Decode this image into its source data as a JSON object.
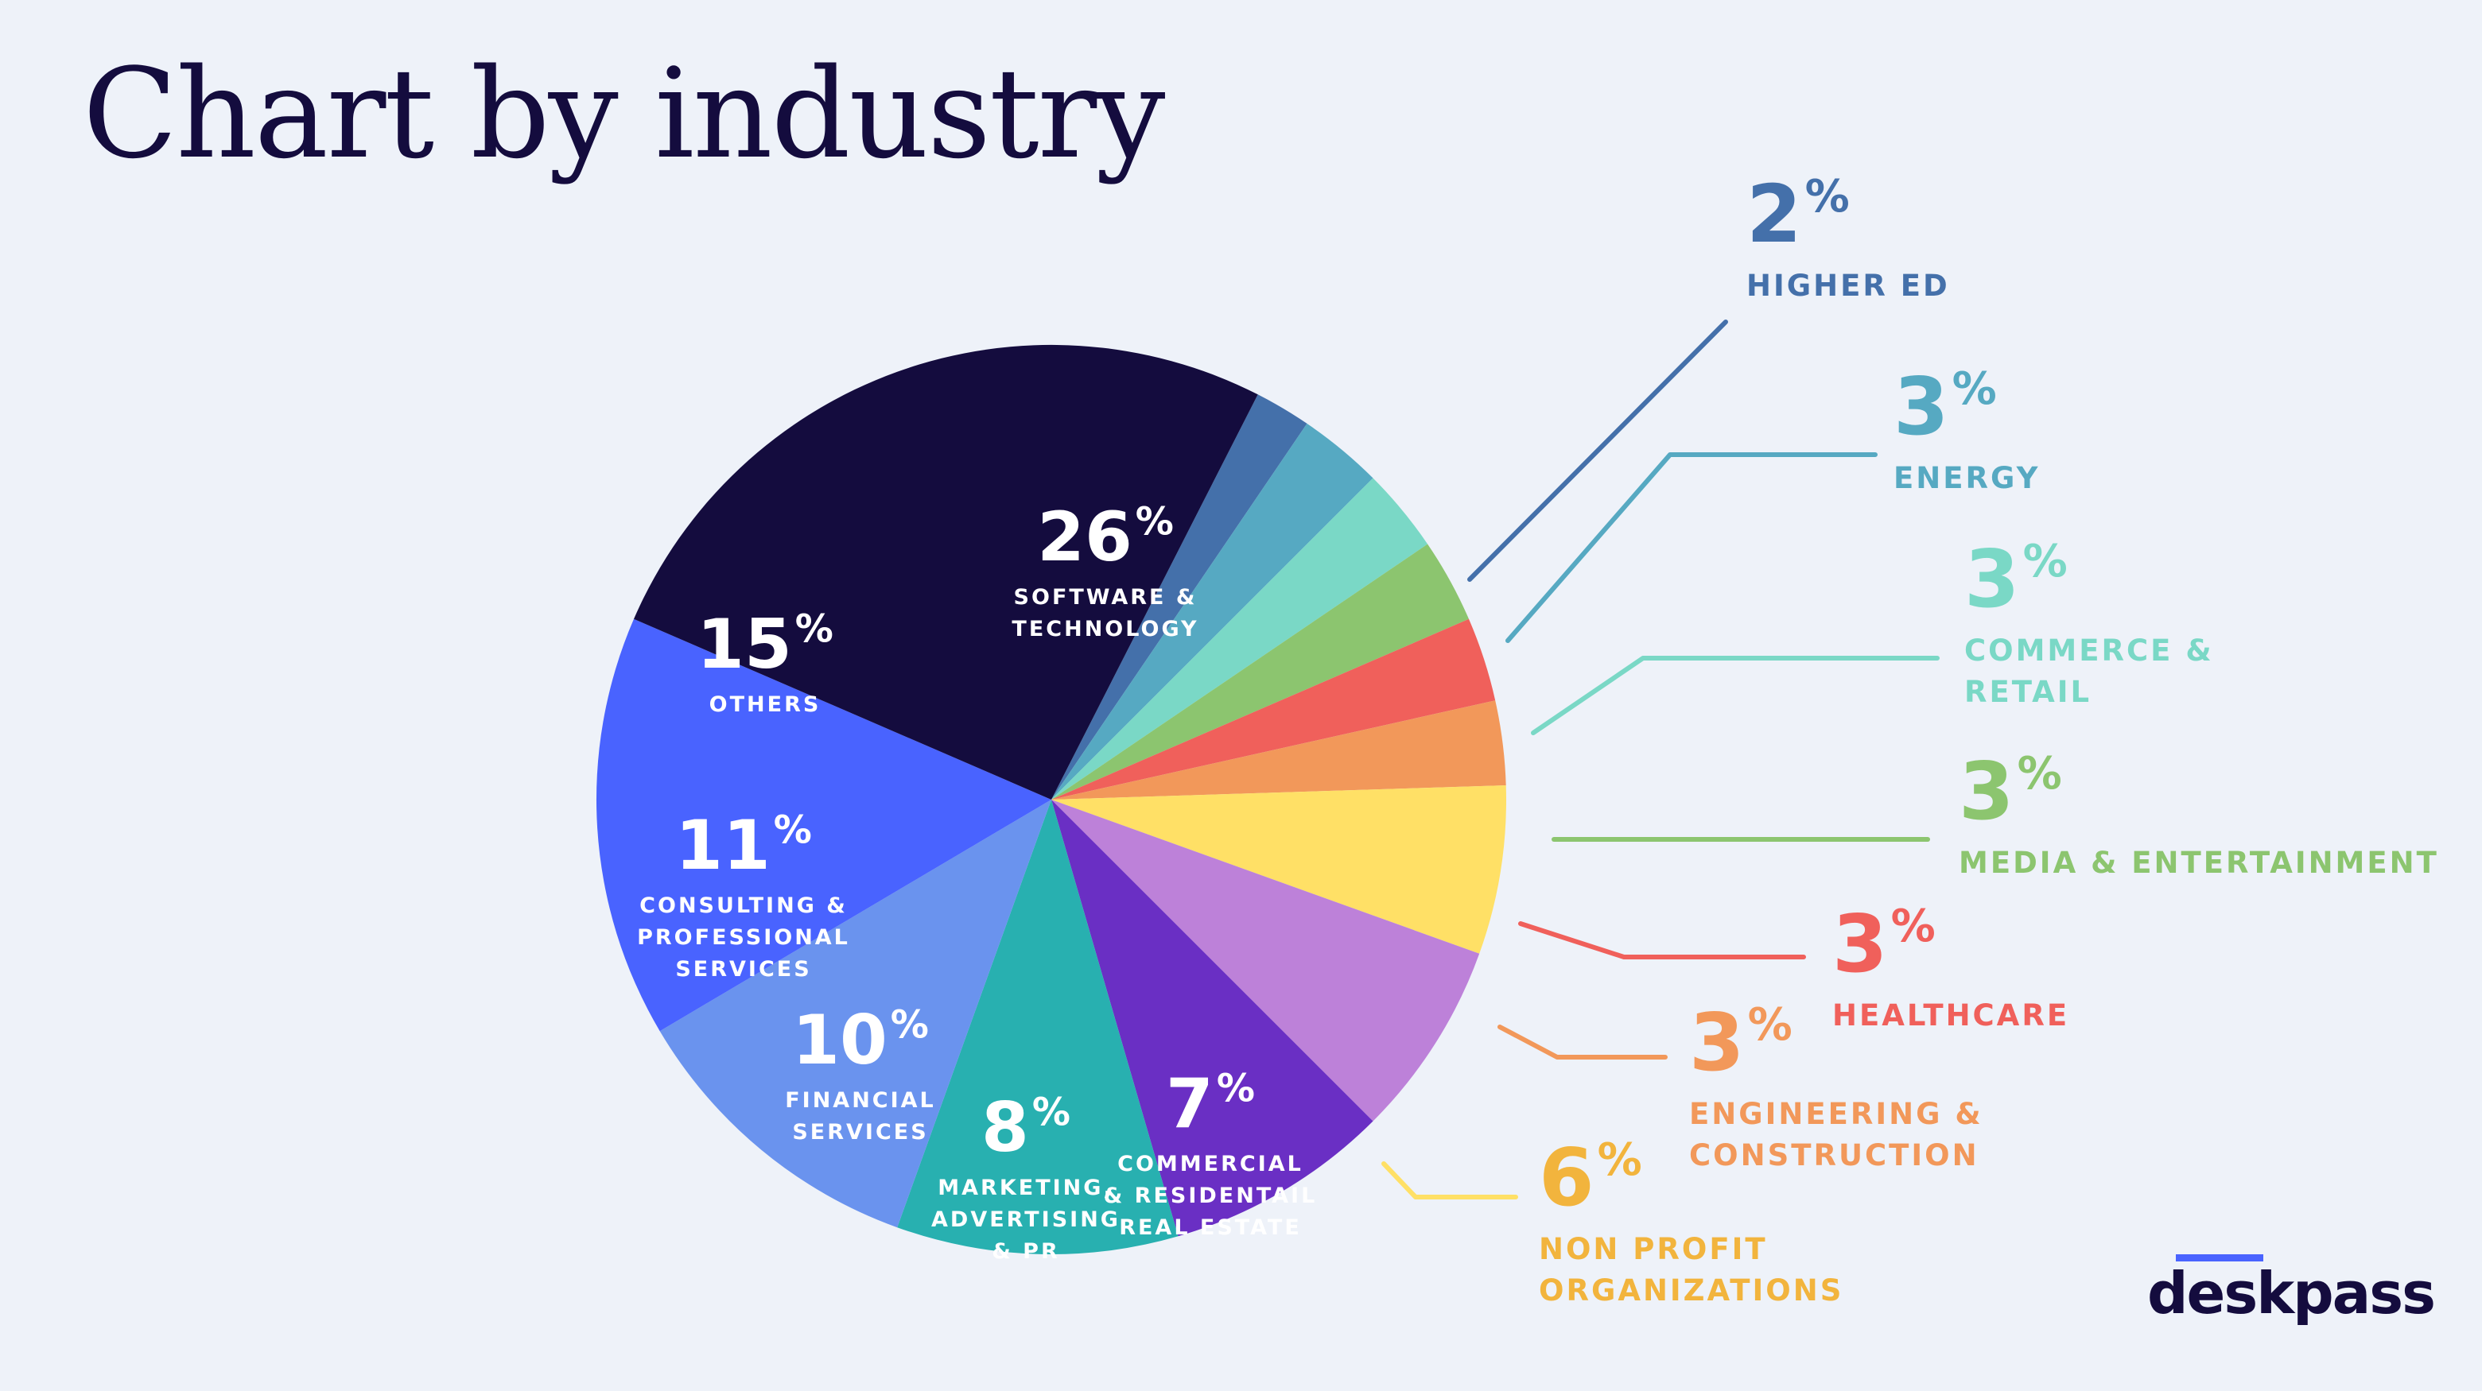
{
  "title": "Chart by industry",
  "brand": {
    "name": "deskpass",
    "accent_color": "#4963FF"
  },
  "chart_data": {
    "type": "pie",
    "title": "Chart by industry",
    "start_angle_deg": 27,
    "slices": [
      {
        "label_lines": [
          "HIGHER ED"
        ],
        "value": 2,
        "color": "#4470AA",
        "text_color": "#4470AA",
        "label_position": "outside"
      },
      {
        "label_lines": [
          "ENERGY"
        ],
        "value": 3,
        "color": "#56A9C2",
        "text_color": "#56A9C2",
        "label_position": "outside"
      },
      {
        "label_lines": [
          "COMMERCE &",
          "RETAIL"
        ],
        "value": 3,
        "color": "#7AD8C6",
        "text_color": "#7AD8C6",
        "label_position": "outside"
      },
      {
        "label_lines": [
          "MEDIA & ENTERTAINMENT"
        ],
        "value": 3,
        "color": "#8CC56F",
        "text_color": "#8CC56F",
        "label_position": "outside"
      },
      {
        "label_lines": [
          "HEALTHCARE"
        ],
        "value": 3,
        "color": "#F0605B",
        "text_color": "#F0605B",
        "label_position": "outside"
      },
      {
        "label_lines": [
          "ENGINEERING &",
          "CONSTRUCTION"
        ],
        "value": 3,
        "color": "#F2985A",
        "text_color": "#F2985A",
        "label_position": "outside"
      },
      {
        "label_lines": [
          "NON PROFIT",
          "ORGANIZATIONS"
        ],
        "value": 6,
        "color": "#FFE066",
        "text_color": "#F2B43D",
        "label_position": "outside"
      },
      {
        "label_lines": [
          "COMMERCIAL",
          "& RESIDENTAIL",
          "REAL ESTATE"
        ],
        "value": 7,
        "color": "#BD81D9",
        "text_color": "#FFFFFF",
        "label_position": "inside"
      },
      {
        "label_lines": [
          "MARKETING,",
          "ADVERTISING",
          "& PR"
        ],
        "value": 8,
        "color": "#6A2FC4",
        "text_color": "#FFFFFF",
        "label_position": "inside"
      },
      {
        "label_lines": [
          "FINANCIAL",
          "SERVICES"
        ],
        "value": 10,
        "color": "#28B0B0",
        "text_color": "#FFFFFF",
        "label_position": "inside"
      },
      {
        "label_lines": [
          "CONSULTING &",
          "PROFESSIONAL",
          "SERVICES"
        ],
        "value": 11,
        "color": "#6A93EE",
        "text_color": "#FFFFFF",
        "label_position": "inside"
      },
      {
        "label_lines": [
          "OTHERS"
        ],
        "value": 15,
        "color": "#4963FF",
        "text_color": "#FFFFFF",
        "label_position": "inside"
      },
      {
        "label_lines": [
          "SOFTWARE &",
          "TECHNOLOGY"
        ],
        "value": 26,
        "color": "#140C3E",
        "text_color": "#FFFFFF",
        "label_position": "inside"
      }
    ]
  }
}
